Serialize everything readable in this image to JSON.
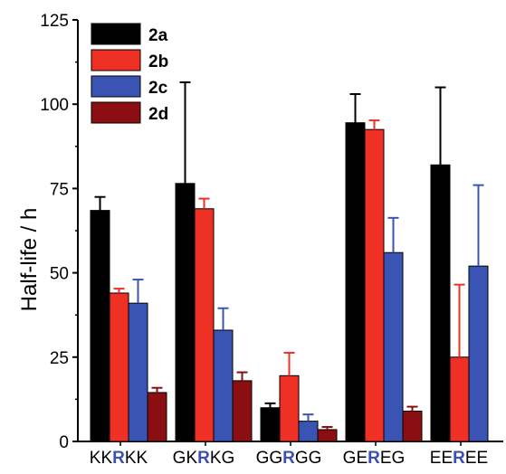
{
  "chart_data": {
    "type": "bar",
    "ylabel": "Half-life / h",
    "ylim": [
      0,
      125
    ],
    "yticks": [
      0,
      25,
      50,
      75,
      100,
      125
    ],
    "categories": [
      {
        "parts": [
          "KK",
          "R",
          "KK"
        ]
      },
      {
        "parts": [
          "GK",
          "R",
          "KG"
        ]
      },
      {
        "parts": [
          "GG",
          "R",
          "GG"
        ]
      },
      {
        "parts": [
          "GE",
          "R",
          "EG"
        ]
      },
      {
        "parts": [
          "EE",
          "R",
          "EE"
        ]
      }
    ],
    "highlight_color": "#3a50b8",
    "series": [
      {
        "name": "2a",
        "color": "#000000",
        "values": [
          68.5,
          76.5,
          10.0,
          94.5,
          82.0
        ],
        "errors": [
          4.0,
          30.0,
          1.3,
          8.5,
          23.0
        ]
      },
      {
        "name": "2b",
        "color": "#ee3124",
        "values": [
          44.0,
          69.0,
          19.5,
          92.5,
          25.0
        ],
        "errors": [
          1.3,
          3.0,
          6.8,
          2.7,
          21.5
        ]
      },
      {
        "name": "2c",
        "color": "#3a54b4",
        "values": [
          41.0,
          33.0,
          6.0,
          56.0,
          52.0
        ],
        "errors": [
          7.0,
          6.5,
          2.0,
          10.3,
          24.0
        ]
      },
      {
        "name": "2d",
        "color": "#8b0f12",
        "values": [
          14.5,
          18.0,
          3.5,
          9.0,
          null
        ],
        "errors": [
          1.4,
          2.5,
          0.8,
          1.3,
          null
        ]
      }
    ],
    "legend": "top-left",
    "grid": false
  }
}
